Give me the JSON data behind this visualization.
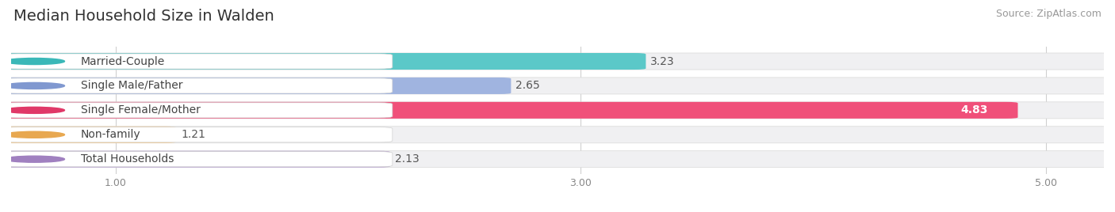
{
  "title": "Median Household Size in Walden",
  "source": "Source: ZipAtlas.com",
  "categories": [
    "Married-Couple",
    "Single Male/Father",
    "Single Female/Mother",
    "Non-family",
    "Total Households"
  ],
  "values": [
    3.23,
    2.65,
    4.83,
    1.21,
    2.13
  ],
  "bar_colors": [
    "#5bc8c8",
    "#a0b4e0",
    "#f0507a",
    "#f5c888",
    "#b8a0d0"
  ],
  "label_dot_colors": [
    "#3ab8b8",
    "#8098d0",
    "#e03868",
    "#e8a850",
    "#a080c0"
  ],
  "value_in_bar": [
    false,
    false,
    true,
    false,
    false
  ],
  "xlim_min": 0.55,
  "xlim_max": 5.25,
  "xticks": [
    1.0,
    3.0,
    5.0
  ],
  "xtick_labels": [
    "1.00",
    "3.00",
    "5.00"
  ],
  "background_color": "#ffffff",
  "bar_bg_color": "#f0f0f2",
  "title_fontsize": 14,
  "source_fontsize": 9,
  "label_fontsize": 10,
  "value_fontsize": 10
}
